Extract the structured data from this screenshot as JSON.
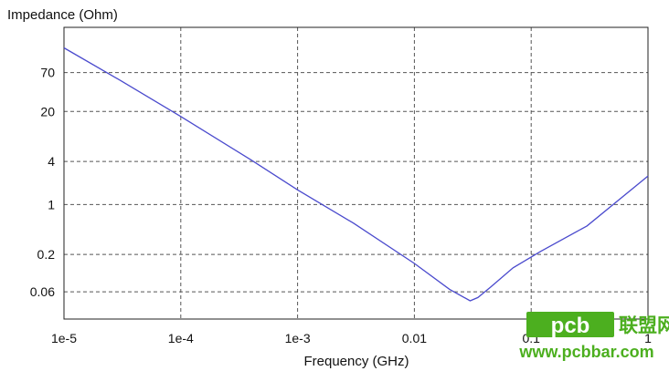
{
  "chart_data": {
    "type": "line",
    "ylabel": "Impedance (Ohm)",
    "xlabel": "Frequency (GHz)",
    "xscale": "log",
    "yscale": "log",
    "xlim": [
      1e-05,
      1
    ],
    "ylim": [
      0.025,
      300
    ],
    "x_ticks": [
      {
        "value": 1e-05,
        "label": "1e-5"
      },
      {
        "value": 0.0001,
        "label": "1e-4"
      },
      {
        "value": 0.001,
        "label": "1e-3"
      },
      {
        "value": 0.01,
        "label": "0.01"
      },
      {
        "value": 0.1,
        "label": "0.1"
      },
      {
        "value": 1,
        "label": "1"
      }
    ],
    "y_ticks": [
      {
        "value": 0.06,
        "label": "0.06"
      },
      {
        "value": 0.2,
        "label": "0.2"
      },
      {
        "value": 1,
        "label": "1"
      },
      {
        "value": 4,
        "label": "4"
      },
      {
        "value": 20,
        "label": "20"
      },
      {
        "value": 70,
        "label": "70"
      }
    ],
    "grid": true,
    "series": [
      {
        "color": "#4a4acd",
        "x": [
          1e-05,
          3e-05,
          0.0001,
          0.0004,
          0.001,
          0.003,
          0.01,
          0.02,
          0.03,
          0.035,
          0.045,
          0.07,
          0.12,
          0.3,
          1
        ],
        "y": [
          155,
          55,
          17,
          4.2,
          1.6,
          0.55,
          0.15,
          0.065,
          0.045,
          0.05,
          0.07,
          0.13,
          0.22,
          0.5,
          2.5
        ]
      }
    ]
  },
  "watermark": {
    "brand": "pcb",
    "cn": "联盟网",
    "url": "www.pcbbar.com",
    "color": "#4caf1f"
  }
}
